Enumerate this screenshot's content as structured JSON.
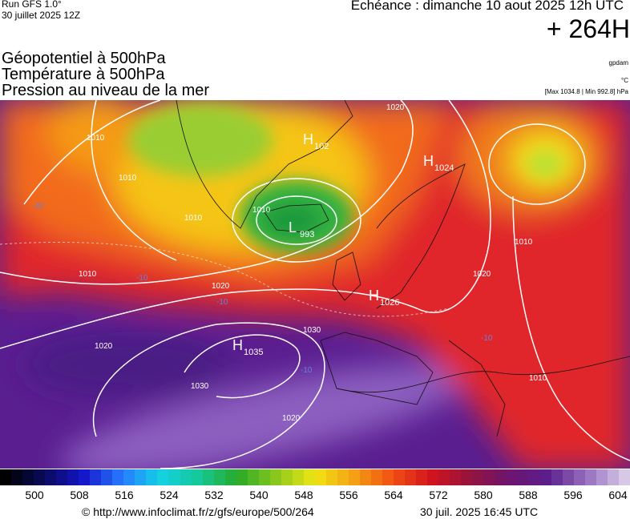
{
  "header": {
    "run": "Run GFS 1.0°",
    "run_date": "30 juillet 2025 12Z",
    "valid_time": "Echéance : dimanche 10 aout 2025 12h UTC",
    "lead_time": "+ 264H",
    "fields": [
      "Géopotentiel à 500hPa",
      "Température à 500hPa",
      "Pression au niveau de la mer"
    ],
    "units": [
      "gpdam",
      "°C",
      "[Max 1034.8 | Min 992.8] hPa"
    ]
  },
  "map": {
    "centers": [
      {
        "letter": "H",
        "value": "102"
      },
      {
        "letter": "L",
        "value": "993"
      },
      {
        "letter": "H",
        "value": "1024"
      },
      {
        "letter": "H",
        "value": "1026"
      },
      {
        "letter": "H",
        "value": "1035"
      }
    ],
    "isobar_labels": [
      "1010",
      "1010",
      "1010",
      "1010",
      "1020",
      "1020",
      "1030",
      "1030",
      "1020",
      "1020",
      "1010",
      "1020",
      "1010",
      "1010"
    ],
    "temperature_labels": [
      "-10",
      "-10",
      "-10",
      "-10",
      "-10"
    ]
  },
  "colorbar": {
    "ticks": [
      "500",
      "508",
      "516",
      "524",
      "532",
      "540",
      "548",
      "556",
      "564",
      "572",
      "580",
      "588",
      "596",
      "604"
    ]
  },
  "footer": {
    "source": "© http://www.infoclimat.fr/z/gfs/europe/500/264",
    "timestamp": "30 juil. 2025 16:45 UTC"
  }
}
